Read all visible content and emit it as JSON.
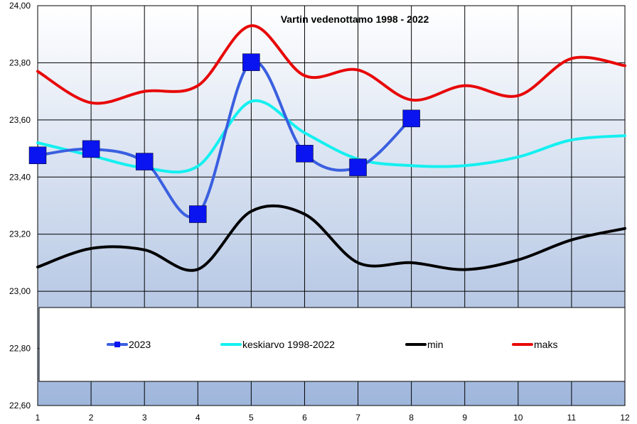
{
  "chart_data": {
    "type": "line",
    "title": "Vartin vedenottamo 1998 - 2022",
    "x": [
      1,
      2,
      3,
      4,
      5,
      6,
      7,
      8,
      9,
      10,
      11,
      12
    ],
    "x_tick_labels": [
      "1",
      "2",
      "3",
      "4",
      "5",
      "6",
      "7",
      "8",
      "9",
      "10",
      "11",
      "12"
    ],
    "ylim": [
      22.6,
      24.0
    ],
    "y_tick_labels": [
      "22,60",
      "22,80",
      "23,00",
      "23,20",
      "23,40",
      "23,60",
      "23,80",
      "24,00"
    ],
    "grid": true,
    "legend_position": "bottom-inside",
    "series": [
      {
        "name": "2023",
        "color": "#3a5fe0",
        "marker": "square",
        "marker_color": "#0a14f0",
        "values": [
          23.476,
          23.498,
          23.454,
          23.27,
          23.802,
          23.482,
          23.434,
          23.605,
          null,
          null,
          null,
          null
        ]
      },
      {
        "name": "keskiarvo 1998-2022",
        "color": "#14f0f0",
        "values": [
          23.52,
          23.475,
          23.432,
          23.438,
          23.665,
          23.555,
          23.463,
          23.44,
          23.44,
          23.47,
          23.53,
          23.545
        ]
      },
      {
        "name": "min",
        "color": "#000000",
        "values": [
          23.085,
          23.15,
          23.145,
          23.077,
          23.28,
          23.27,
          23.1,
          23.1,
          23.076,
          23.11,
          23.18,
          23.22
        ]
      },
      {
        "name": "maks",
        "color": "#e80808",
        "values": [
          23.77,
          23.66,
          23.7,
          23.72,
          23.93,
          23.755,
          23.775,
          23.67,
          23.72,
          23.685,
          23.815,
          23.79
        ]
      }
    ]
  }
}
